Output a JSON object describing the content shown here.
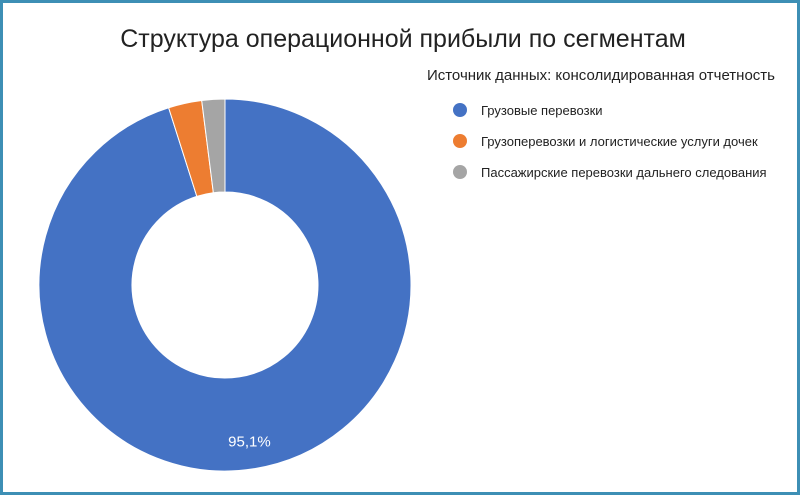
{
  "chart_data": {
    "type": "pie",
    "variant": "donut",
    "title": "Структура операционной прибыли по сегментам",
    "subtitle": "Источник данных: консолидированная отчетность",
    "legend_position": "right",
    "slices": [
      {
        "label": "Грузовые перевозки",
        "value": 95.1,
        "color": "#4472c4",
        "data_label": "95,1%"
      },
      {
        "label": "Грузоперевозки и логистические услуги дочек",
        "value": 2.9,
        "color": "#ed7d31",
        "data_label": ""
      },
      {
        "label": "Пассажирские перевозки дальнего следования",
        "value": 2.0,
        "color": "#a5a5a5",
        "data_label": ""
      }
    ]
  }
}
